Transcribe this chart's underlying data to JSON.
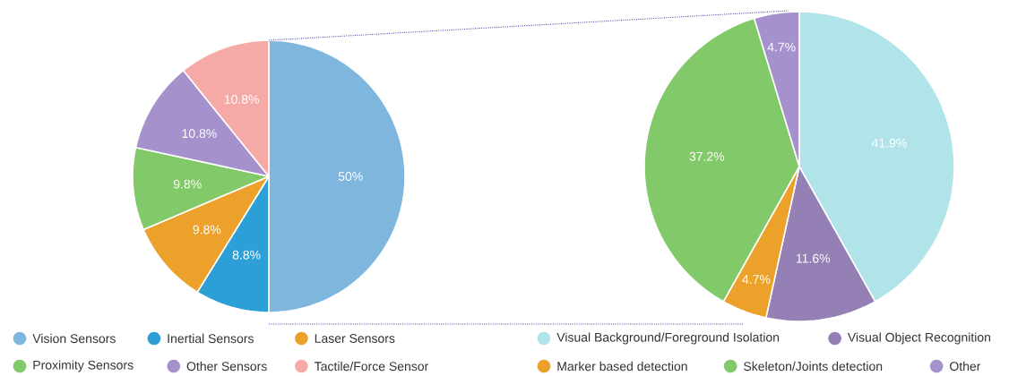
{
  "chart_data": [
    {
      "type": "pie",
      "categories": [
        "Vision Sensors",
        "Inertial Sensors",
        "Laser Sensors",
        "Proximity Sensors",
        "Other Sensors",
        "Tactile/Force Sensor"
      ],
      "values": [
        50,
        8.8,
        9.8,
        9.8,
        10.8,
        10.8
      ],
      "value_labels": [
        "50%",
        "8.8%",
        "9.8%",
        "9.8%",
        "10.8%",
        "10.8%"
      ],
      "colors": [
        "#7fb6de",
        "#2b9fd6",
        "#eca22a",
        "#82c96a",
        "#a592cc",
        "#f5aaa8"
      ],
      "legend": "bottom"
    },
    {
      "type": "pie",
      "categories": [
        "Visual Background/Foreground Isolation",
        "Visual Object Recognition",
        "Marker based detection",
        "Skeleton/Joints detection",
        "Other"
      ],
      "values": [
        41.9,
        11.6,
        4.7,
        37.2,
        4.7
      ],
      "value_labels": [
        "41.9%",
        "11.6%",
        "4.7%",
        "37.2%",
        "4.7%"
      ],
      "colors": [
        "#b0e4e8",
        "#9480b5",
        "#eca22a",
        "#82c96a",
        "#a592cc"
      ],
      "legend": "bottom"
    }
  ]
}
